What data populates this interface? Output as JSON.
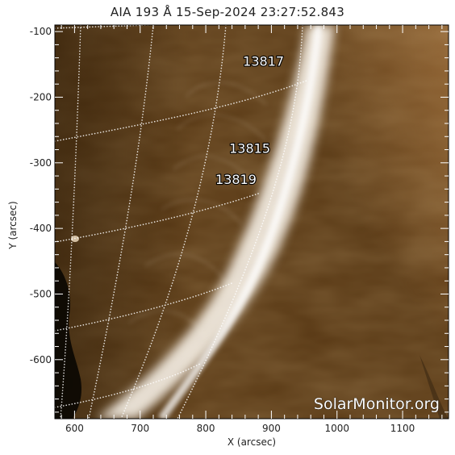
{
  "plot": {
    "title": "AIA 193 Å 15-Sep-2024  23:27:52.843",
    "xlabel": "X (arcsec)",
    "ylabel": "Y (arcsec)",
    "watermark": "SolarMonitor.org"
  },
  "axes": {
    "xlim": [
      570,
      1170
    ],
    "ylim": [
      -690,
      -90
    ],
    "xticks": [
      "600",
      "700",
      "800",
      "900",
      "1000",
      "1100"
    ],
    "yticks": [
      "-100",
      "-200",
      "-300",
      "-400",
      "-500",
      "-600"
    ]
  },
  "regions": [
    {
      "label": "13817",
      "x": 888,
      "y": -152
    },
    {
      "label": "13815",
      "x": 867,
      "y": -285
    },
    {
      "label": "13819",
      "x": 846,
      "y": -332
    }
  ],
  "colors": {
    "colormap": [
      "#1f1303",
      "#5a3a12",
      "#9b6a34",
      "#cfa878",
      "#f6ece0"
    ],
    "tick": "#ffffff",
    "watermark": "#ffffff"
  }
}
